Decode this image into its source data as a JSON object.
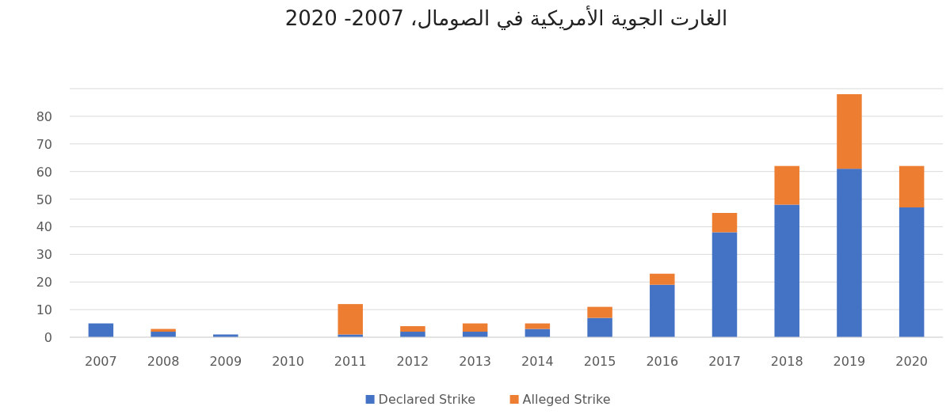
{
  "chart_data": {
    "type": "bar",
    "title": "الغارت الجوية الأمريكية في الصومال، 2007- 2020",
    "categories": [
      "2007",
      "2008",
      "2009",
      "2010",
      "2011",
      "2012",
      "2013",
      "2014",
      "2015",
      "2016",
      "2017",
      "2018",
      "2019",
      "2020"
    ],
    "series": [
      {
        "name": "Declared Strike",
        "color": "#4472c4",
        "values": [
          5,
          2,
          1,
          0,
          1,
          2,
          2,
          3,
          7,
          19,
          38,
          48,
          61,
          47
        ]
      },
      {
        "name": "Alleged Strike",
        "color": "#ed7d31",
        "values": [
          0,
          1,
          0,
          0,
          11,
          2,
          3,
          2,
          4,
          4,
          7,
          14,
          27,
          15
        ]
      }
    ],
    "stacked": true,
    "ylim": [
      0,
      90
    ],
    "yticks": [
      0,
      10,
      20,
      30,
      40,
      50,
      60,
      70,
      80,
      {
        "value": 90,
        "label": null
      }
    ],
    "grid": "y",
    "legend": "bottom"
  }
}
